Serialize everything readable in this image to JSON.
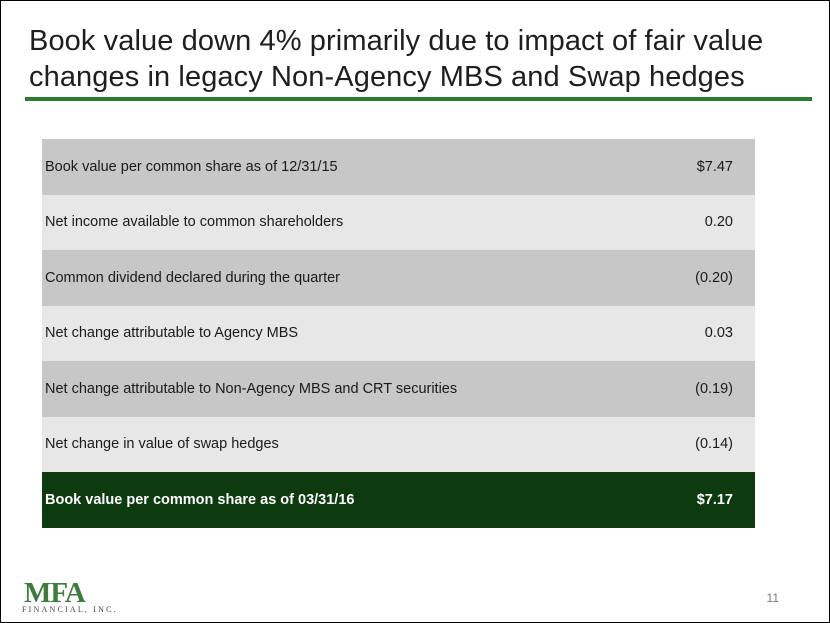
{
  "slide": {
    "title_lines": [
      "Book value down 4% primarily due to impact of fair value",
      "changes in legacy Non-Agency MBS and Swap hedges"
    ],
    "page_number": "11",
    "logo": {
      "main": "MFA",
      "sub": "FINANCIAL, INC."
    }
  },
  "table": {
    "rows": [
      {
        "label": "Book value per common share as of 12/31/15",
        "value": "$7.47"
      },
      {
        "label": "Net income available to common shareholders",
        "value": "0.20"
      },
      {
        "label": "Common dividend declared during the quarter",
        "value": "(0.20)"
      },
      {
        "label": "Net change attributable to Agency MBS",
        "value": "0.03"
      },
      {
        "label": "Net change attributable to Non-Agency MBS and CRT securities",
        "value": "(0.19)"
      },
      {
        "label": "Net change in value of swap hedges",
        "value": "(0.14)"
      }
    ],
    "total": {
      "label": "Book value per common share as of 03/31/16",
      "value": "$7.17"
    }
  },
  "colors": {
    "accent_rule": "#2a7a33",
    "total_row_bg": "#0d3b0f",
    "row_dark": "#c7c7c7",
    "row_light": "#e7e7e7",
    "logo_green": "#3c7d3e"
  }
}
